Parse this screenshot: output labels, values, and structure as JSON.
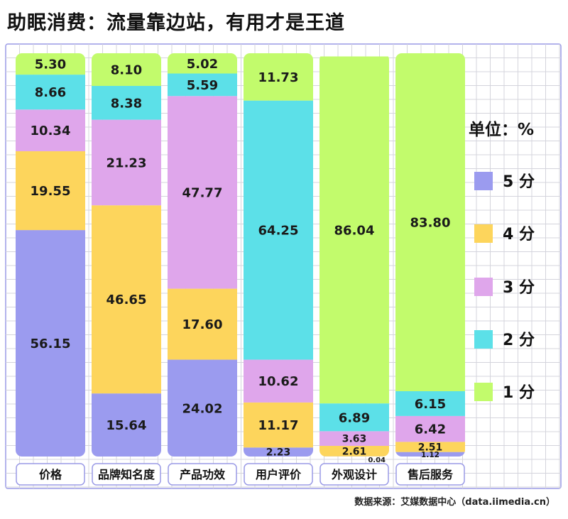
{
  "title": "助眠消费：流量靠边站，有用才是王道",
  "source": "数据来源：艾媒数据中心（data.iimedia.cn）",
  "unit_label": "单位：%",
  "colors": {
    "5分": "#9b9bef",
    "4分": "#fdd55c",
    "3分": "#dfa6eb",
    "2分": "#5ce0e8",
    "1分": "#c2fb6c",
    "grid": "#d4d4dc",
    "frame": "#9a9ae6"
  },
  "chart_data": {
    "type": "bar",
    "stacked": true,
    "orientation": "vertical",
    "unit": "%",
    "categories": [
      "价格",
      "品牌知名度",
      "产品功效",
      "用户评价",
      "外观设计",
      "售后服务"
    ],
    "series": [
      {
        "name": "5分",
        "values": [
          56.15,
          15.64,
          24.02,
          2.23,
          0.04,
          1.12
        ]
      },
      {
        "name": "4分",
        "values": [
          19.55,
          46.65,
          17.6,
          11.17,
          2.61,
          2.51
        ]
      },
      {
        "name": "3分",
        "values": [
          10.34,
          21.23,
          47.77,
          10.62,
          3.63,
          6.42
        ]
      },
      {
        "name": "2分",
        "values": [
          8.66,
          8.38,
          5.59,
          64.25,
          6.89,
          6.15
        ]
      },
      {
        "name": "1分",
        "values": [
          5.3,
          8.1,
          5.02,
          11.73,
          86.04,
          83.8
        ]
      }
    ],
    "ylim": [
      0,
      100
    ],
    "grid": true,
    "legend_position": "right"
  }
}
